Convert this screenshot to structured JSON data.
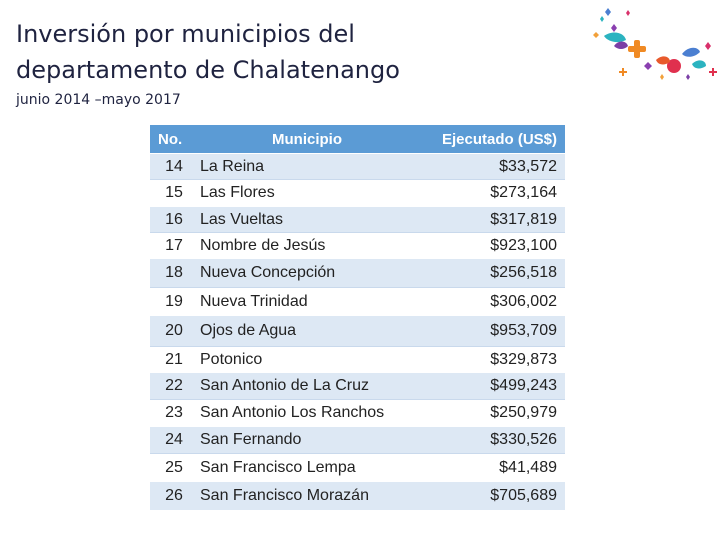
{
  "title": {
    "line1": "Inversión por municipios del",
    "line2": "departamento de Chalatenango"
  },
  "subtitle": "junio 2014 –mayo 2017",
  "table": {
    "headers": {
      "no": "No.",
      "municipio": "Municipio",
      "ejecutado": "Ejecutado (US$)"
    },
    "rows": [
      {
        "no": "14",
        "municipio": "La Reina",
        "ejecutado": "$33,572"
      },
      {
        "no": "15",
        "municipio": "Las Flores",
        "ejecutado": "$273,164"
      },
      {
        "no": "16",
        "municipio": "Las Vueltas",
        "ejecutado": "$317,819"
      },
      {
        "no": "17",
        "municipio": "Nombre de Jesús",
        "ejecutado": "$923,100"
      },
      {
        "no": "18",
        "municipio": "Nueva Concepción",
        "ejecutado": "$256,518"
      },
      {
        "no": "19",
        "municipio": "Nueva Trinidad",
        "ejecutado": "$306,002"
      },
      {
        "no": "20",
        "municipio": "Ojos de Agua",
        "ejecutado": "$953,709"
      },
      {
        "no": "21",
        "municipio": "Potonico",
        "ejecutado": "$329,873"
      },
      {
        "no": "22",
        "municipio": "San Antonio de La Cruz",
        "ejecutado": "$499,243"
      },
      {
        "no": "23",
        "municipio": "San Antonio Los Ranchos",
        "ejecutado": "$250,979"
      },
      {
        "no": "24",
        "municipio": "San Fernando",
        "ejecutado": "$330,526"
      },
      {
        "no": "25",
        "municipio": "San Francisco Lempa",
        "ejecutado": "$41,489"
      },
      {
        "no": "26",
        "municipio": "San Francisco Morazán",
        "ejecutado": "$705,689"
      }
    ]
  },
  "colors": {
    "header_bg": "#5b9bd5",
    "row_band": "#dde8f4",
    "title_text": "#1f2340"
  },
  "logo": {
    "icon": "decorative-confetti-logo-icon"
  }
}
